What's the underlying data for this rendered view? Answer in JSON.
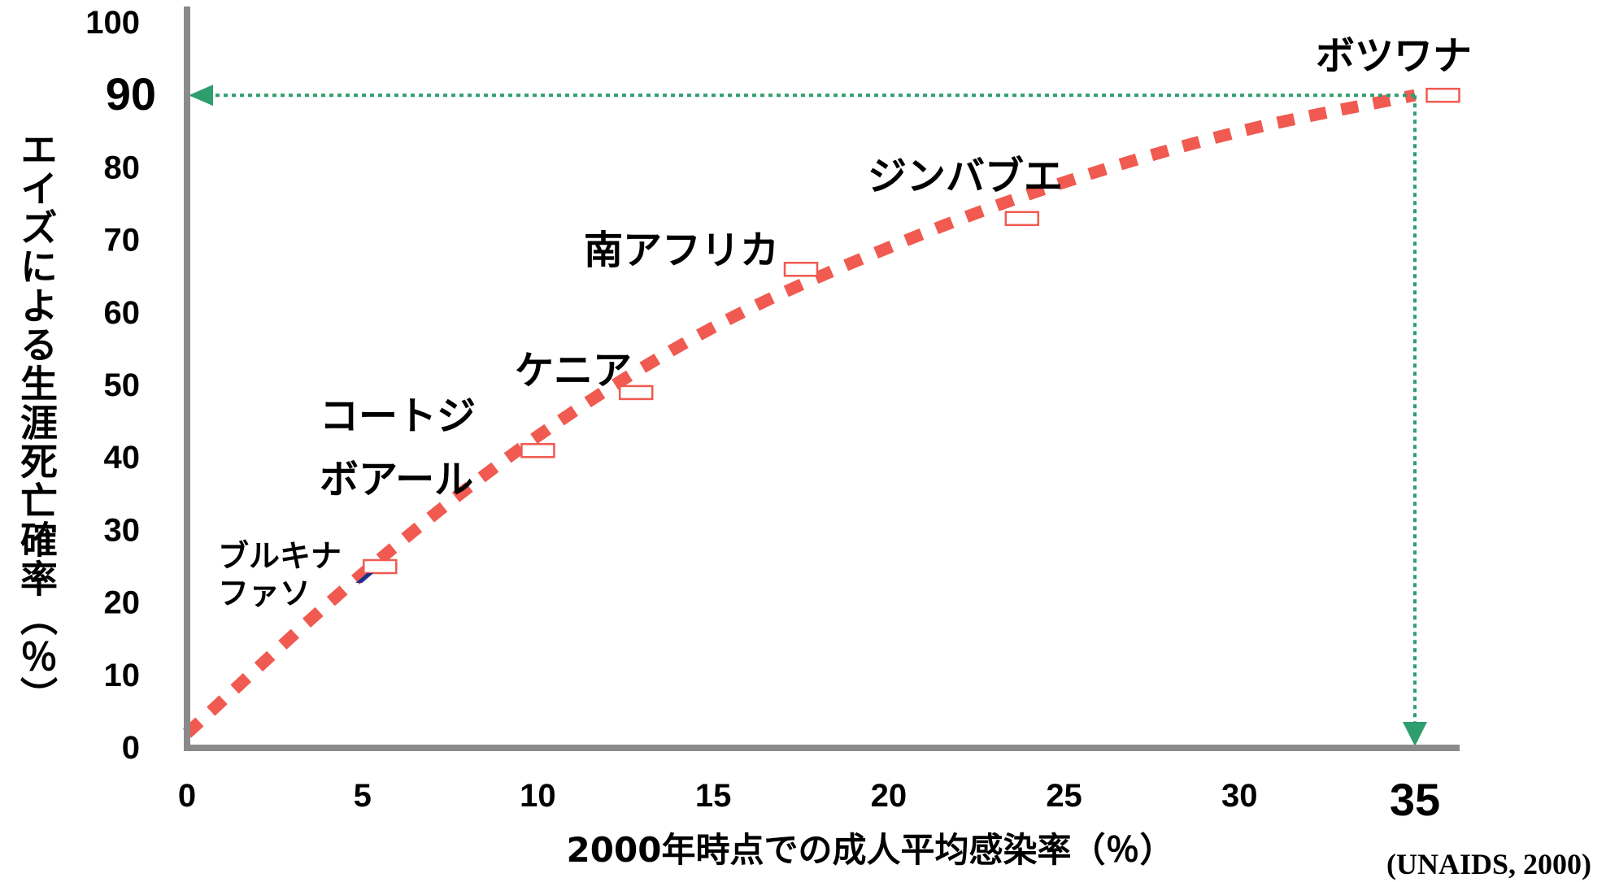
{
  "chart_data": {
    "type": "scatter",
    "title": "",
    "xlabel": "2000年時点での成人平均感染率（％）",
    "ylabel": "エイズによる生涯死亡確率（％）",
    "source": "(UNAIDS, 2000)",
    "xlim": [
      0,
      35
    ],
    "ylim": [
      0,
      100
    ],
    "x_ticks": [
      0,
      5,
      10,
      15,
      20,
      25,
      30,
      35
    ],
    "y_ticks": [
      0,
      10,
      20,
      30,
      40,
      50,
      60,
      70,
      80,
      90,
      100
    ],
    "emphasized_ticks": {
      "x": 35,
      "y": 90
    },
    "grid": false,
    "points": [
      {
        "label": [
          "ブルキナ",
          "ファソ"
        ],
        "x": 5.5,
        "y": 25
      },
      {
        "label": [
          "コートジ",
          "ボアール"
        ],
        "x": 10,
        "y": 41
      },
      {
        "label": [
          "ケニア"
        ],
        "x": 12.8,
        "y": 49
      },
      {
        "label": [
          "南アフリカ"
        ],
        "x": 17.5,
        "y": 66
      },
      {
        "label": [
          "ジンバブエ"
        ],
        "x": 23.8,
        "y": 73
      },
      {
        "label": [
          "ボツワナ"
        ],
        "x": 35.8,
        "y": 90
      }
    ],
    "trend_line": {
      "style": "dashed",
      "x": [
        0,
        5,
        10,
        15,
        20,
        25,
        30,
        35
      ],
      "y": [
        2,
        24,
        43,
        58,
        69,
        78,
        85,
        90
      ]
    },
    "reference_lines": [
      {
        "orientation": "horizontal",
        "y": 90,
        "from_x": 35,
        "to_x": 0,
        "arrow": "left"
      },
      {
        "orientation": "vertical",
        "x": 35,
        "from_y": 90,
        "to_y": 0,
        "arrow": "down"
      }
    ],
    "colors": {
      "axis": "#8a8a8a",
      "trend": "#f05a50",
      "marker_edge": "#f05a50",
      "reference": "#2e9e6e",
      "small_marker": "#1f2f8a"
    }
  }
}
